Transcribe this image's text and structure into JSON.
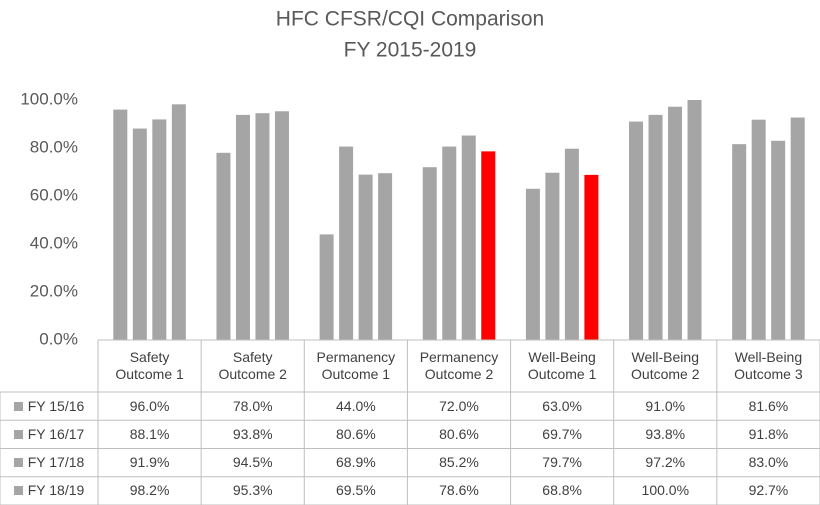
{
  "chart_data": {
    "type": "bar",
    "title": "HFC CFSR/CQI Comparison",
    "subtitle": "FY 2015-2019",
    "categories": [
      "Safety Outcome 1",
      "Safety Outcome 2",
      "Permanency Outcome 1",
      "Permanency Outcome 2",
      "Well-Being Outcome 1",
      "Well-Being Outcome 2",
      "Well-Being Outcome 3"
    ],
    "series": [
      {
        "name": "FY 15/16",
        "color": "#a5a5a5",
        "values": [
          96.0,
          78.0,
          44.0,
          72.0,
          63.0,
          91.0,
          81.6
        ],
        "value_labels": [
          "96.0%",
          "78.0%",
          "44.0%",
          "72.0%",
          "63.0%",
          "91.0%",
          "81.6%"
        ]
      },
      {
        "name": "FY 16/17",
        "color": "#a5a5a5",
        "values": [
          88.1,
          93.8,
          80.6,
          80.6,
          69.7,
          93.8,
          91.8
        ],
        "value_labels": [
          "88.1%",
          "93.8%",
          "80.6%",
          "80.6%",
          "69.7%",
          "93.8%",
          "91.8%"
        ]
      },
      {
        "name": "FY 17/18",
        "color": "#a5a5a5",
        "values": [
          91.9,
          94.5,
          68.9,
          85.2,
          79.7,
          97.2,
          83.0
        ],
        "value_labels": [
          "91.9%",
          "94.5%",
          "68.9%",
          "85.2%",
          "79.7%",
          "97.2%",
          "83.0%"
        ]
      },
      {
        "name": "FY 18/19",
        "color": "#a5a5a5",
        "point_colors": [
          "#a5a5a5",
          "#a5a5a5",
          "#a5a5a5",
          "#ff0000",
          "#ff0000",
          "#a5a5a5",
          "#a5a5a5"
        ],
        "values": [
          98.2,
          95.3,
          69.5,
          78.6,
          68.8,
          100.0,
          92.7
        ],
        "value_labels": [
          "98.2%",
          "95.3%",
          "69.5%",
          "78.6%",
          "68.8%",
          "100.0%",
          "92.7%"
        ]
      }
    ],
    "ylim": [
      0,
      100
    ],
    "yticks": [
      {
        "value": 0,
        "label": "0.0%"
      },
      {
        "value": 20,
        "label": "20.0%"
      },
      {
        "value": 40,
        "label": "40.0%"
      },
      {
        "value": 60,
        "label": "60.0%"
      },
      {
        "value": 80,
        "label": "80.0%"
      },
      {
        "value": 100,
        "label": "100.0%"
      }
    ],
    "grid": false
  }
}
